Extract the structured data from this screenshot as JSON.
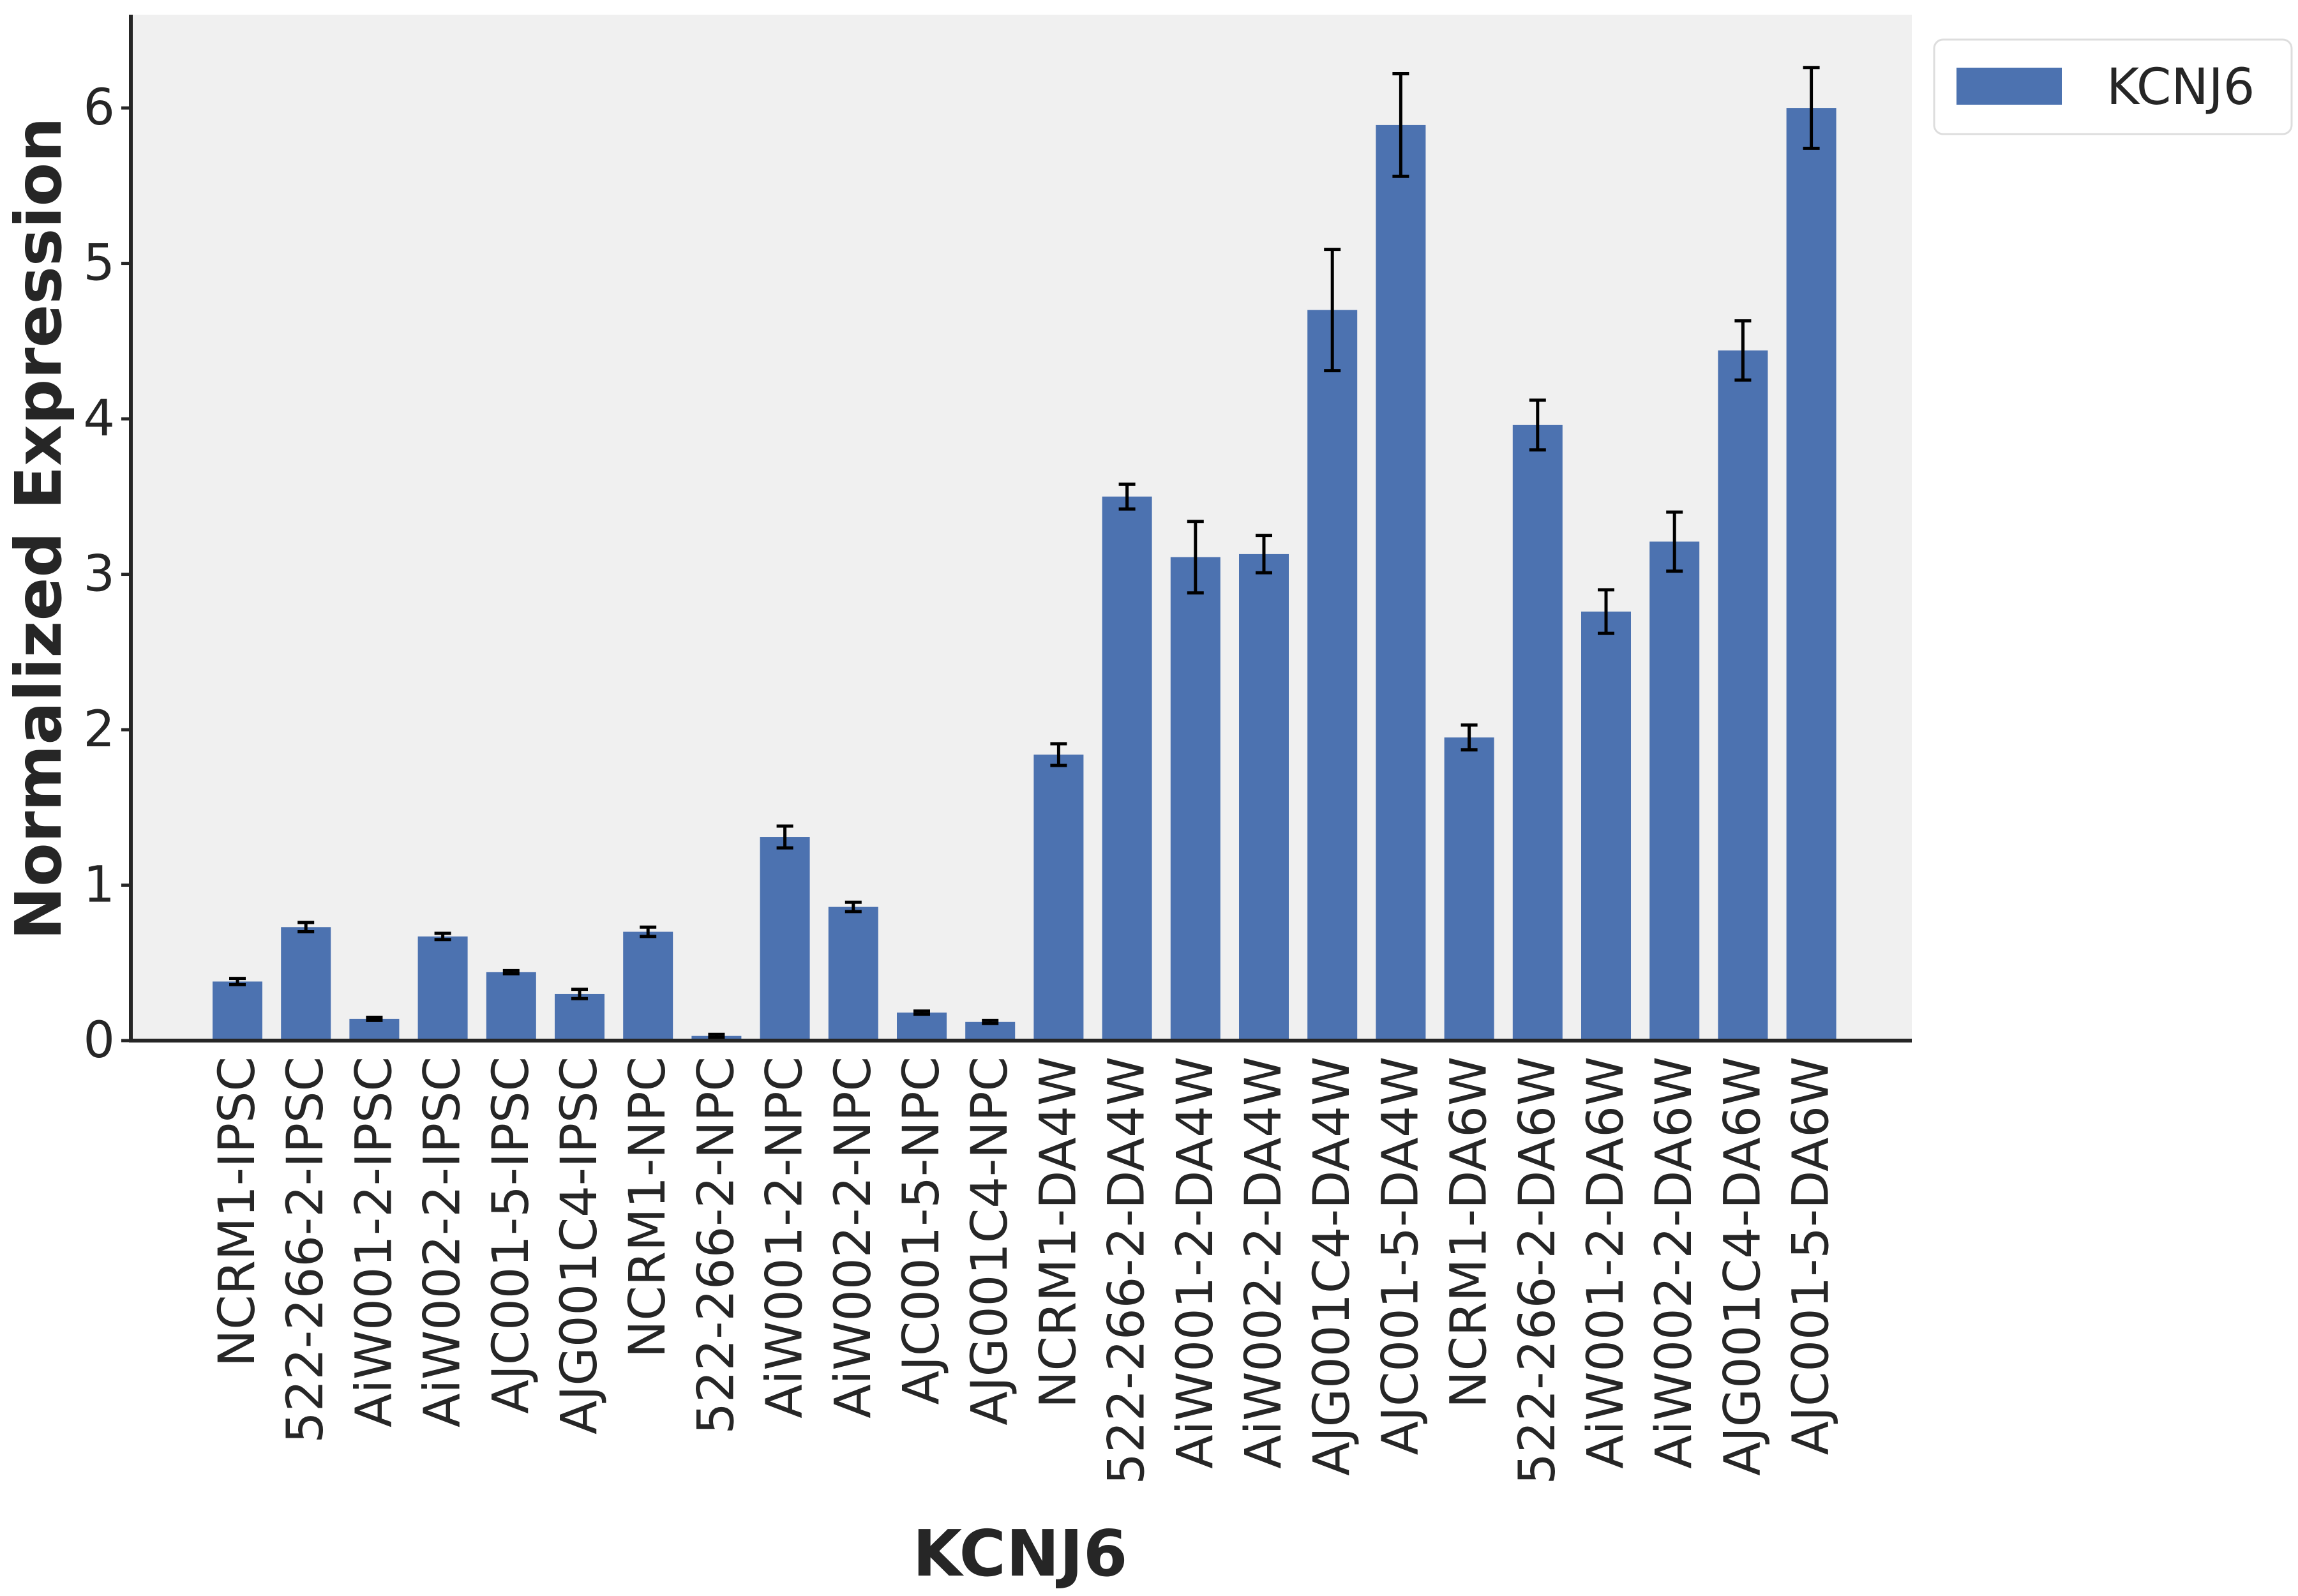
{
  "chart_data": {
    "type": "bar",
    "title": "",
    "xlabel": "KCNJ6",
    "ylabel": "Normalized Expression",
    "ylim": [
      0,
      6.6
    ],
    "yticks": [
      0,
      1,
      2,
      3,
      4,
      5,
      6
    ],
    "grid": false,
    "legend": {
      "position": "top-right",
      "entries": [
        "KCNJ6"
      ]
    },
    "categories": [
      "NCRM1-IPSC",
      "522-266-2-IPSC",
      "AiW001-2-IPSC",
      "AiW002-2-IPSC",
      "AJC001-5-IPSC",
      "AJG001C4-IPSC",
      "NCRM1-NPC",
      "522-266-2-NPC",
      "AiW001-2-NPC",
      "AiW002-2-NPC",
      "AJC001-5-NPC",
      "AJG001C4-NPC",
      "NCRM1-DA4W",
      "522-266-2-DA4W",
      "AiW001-2-DA4W",
      "AiW002-2-DA4W",
      "AJG001C4-DA4W",
      "AJC001-5-DA4W",
      "NCRM1-DA6W",
      "522-266-2-DA6W",
      "AiW001-2-DA6W",
      "AiW002-2-DA6W",
      "AJG001C4-DA6W",
      "AJC001-5-DA6W"
    ],
    "series": [
      {
        "name": "KCNJ6",
        "color": "#4c72b0",
        "values": [
          0.38,
          0.73,
          0.14,
          0.67,
          0.44,
          0.3,
          0.7,
          0.03,
          1.31,
          0.86,
          0.18,
          0.12,
          1.84,
          3.5,
          3.11,
          3.13,
          4.7,
          5.89,
          1.95,
          3.96,
          2.76,
          3.21,
          4.44,
          6.0
        ],
        "errors": [
          0.02,
          0.03,
          0.01,
          0.02,
          0.01,
          0.03,
          0.03,
          0.01,
          0.07,
          0.03,
          0.01,
          0.01,
          0.07,
          0.08,
          0.23,
          0.12,
          0.39,
          0.33,
          0.08,
          0.16,
          0.14,
          0.19,
          0.19,
          0.26
        ]
      }
    ]
  },
  "style": {
    "plot_background": "#f0f0f0",
    "axis_color": "#262626",
    "error_bar_color": "#000000"
  }
}
